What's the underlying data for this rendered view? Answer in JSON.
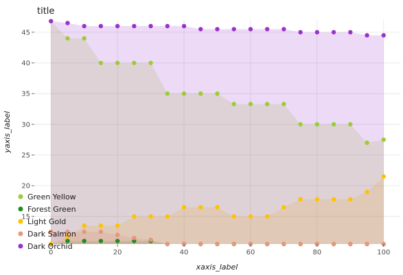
{
  "chart_data": {
    "type": "line",
    "title": "title",
    "xlabel": "xaxis_label",
    "ylabel": "yaxis_label",
    "xlim": [
      -5,
      105
    ],
    "ylim": [
      10.5,
      47
    ],
    "xticks": [
      0,
      20,
      40,
      60,
      80,
      100
    ],
    "yticks": [
      15,
      20,
      25,
      30,
      35,
      40,
      45
    ],
    "grid": true,
    "legend_position": "left",
    "x": [
      0,
      5,
      10,
      15,
      20,
      25,
      30,
      35,
      40,
      45,
      50,
      55,
      60,
      65,
      70,
      75,
      80,
      85,
      90,
      95,
      100
    ],
    "series": [
      {
        "name": "Green Yellow",
        "color": "#9ACD32",
        "values": [
          46.8,
          44.0,
          44.0,
          40.0,
          40.0,
          40.0,
          40.0,
          35.0,
          35.0,
          35.0,
          35.0,
          33.3,
          33.3,
          33.3,
          33.3,
          30.0,
          30.0,
          30.0,
          30.0,
          27.0,
          27.5
        ]
      },
      {
        "name": "Forest Green",
        "color": "#228B22",
        "values": [
          10.5,
          11.0,
          11.0,
          11.0,
          11.0,
          11.0,
          11.0,
          10.5,
          10.5,
          10.5,
          10.5,
          10.5,
          10.5,
          10.5,
          10.5,
          10.5,
          10.5,
          10.5,
          10.5,
          10.5,
          10.5
        ]
      },
      {
        "name": "Light Gold",
        "color": "#FFC200",
        "values": [
          10.5,
          11.7,
          13.5,
          13.5,
          13.5,
          15.0,
          15.0,
          15.0,
          16.5,
          16.5,
          16.5,
          15.0,
          15.0,
          15.0,
          16.5,
          17.8,
          17.8,
          17.8,
          17.8,
          19.0,
          21.5
        ]
      },
      {
        "name": "Dark Salmon",
        "color": "#E9967A",
        "values": [
          12.5,
          12.5,
          12.5,
          12.5,
          12.0,
          11.5,
          11.2,
          10.5,
          10.5,
          10.5,
          10.5,
          10.5,
          10.5,
          10.5,
          10.5,
          10.5,
          10.5,
          10.5,
          10.5,
          10.5,
          10.5
        ]
      },
      {
        "name": "Dark Orchid",
        "color": "#9932CC",
        "values": [
          46.8,
          46.5,
          46.0,
          46.0,
          46.0,
          46.0,
          46.0,
          46.0,
          46.0,
          45.5,
          45.5,
          45.5,
          45.5,
          45.5,
          45.5,
          45.0,
          45.0,
          45.0,
          45.0,
          44.5,
          44.5
        ]
      }
    ]
  }
}
